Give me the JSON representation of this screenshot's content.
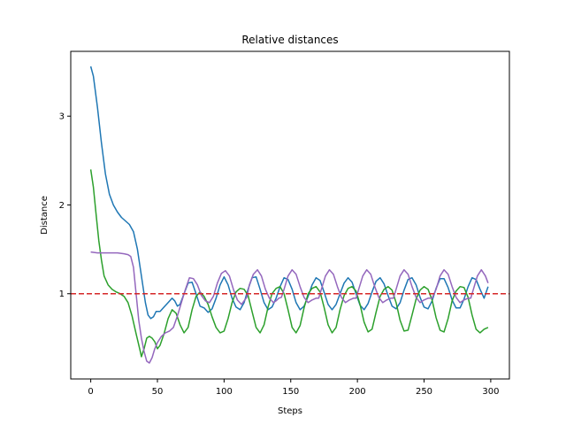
{
  "chart_data": {
    "type": "line",
    "title": "Relative distances",
    "xlabel": "Steps",
    "ylabel": "Distance",
    "xlim": [
      -15,
      314
    ],
    "ylim": [
      0.04,
      3.73
    ],
    "xticks": [
      0,
      50,
      100,
      150,
      200,
      250,
      300
    ],
    "yticks": [
      1,
      2,
      3
    ],
    "grid": false,
    "reference_line": {
      "y": 1.0,
      "style": "dashed",
      "color": "#d62728"
    },
    "series": [
      {
        "color": "#1f77b4",
        "points": [
          [
            0,
            3.56
          ],
          [
            2,
            3.45
          ],
          [
            5,
            3.1
          ],
          [
            8,
            2.7
          ],
          [
            11,
            2.35
          ],
          [
            14,
            2.12
          ],
          [
            17,
            2.0
          ],
          [
            20,
            1.92
          ],
          [
            23,
            1.86
          ],
          [
            26,
            1.82
          ],
          [
            29,
            1.78
          ],
          [
            32,
            1.7
          ],
          [
            35,
            1.5
          ],
          [
            38,
            1.2
          ],
          [
            41,
            0.9
          ],
          [
            43,
            0.76
          ],
          [
            45,
            0.72
          ],
          [
            47,
            0.74
          ],
          [
            49,
            0.8
          ],
          [
            52,
            0.8
          ],
          [
            55,
            0.85
          ],
          [
            58,
            0.9
          ],
          [
            61,
            0.95
          ],
          [
            63,
            0.92
          ],
          [
            65,
            0.86
          ],
          [
            67,
            0.88
          ],
          [
            70,
            1.0
          ],
          [
            73,
            1.12
          ],
          [
            76,
            1.13
          ],
          [
            79,
            1.0
          ],
          [
            82,
            0.86
          ],
          [
            85,
            0.84
          ],
          [
            88,
            0.79
          ],
          [
            91,
            0.83
          ],
          [
            94,
            0.95
          ],
          [
            97,
            1.1
          ],
          [
            100,
            1.19
          ],
          [
            103,
            1.1
          ],
          [
            106,
            0.95
          ],
          [
            109,
            0.85
          ],
          [
            112,
            0.82
          ],
          [
            115,
            0.9
          ],
          [
            118,
            1.05
          ],
          [
            121,
            1.18
          ],
          [
            124,
            1.19
          ],
          [
            127,
            1.05
          ],
          [
            130,
            0.9
          ],
          [
            133,
            0.82
          ],
          [
            136,
            0.85
          ],
          [
            139,
            0.95
          ],
          [
            142,
            1.08
          ],
          [
            145,
            1.18
          ],
          [
            148,
            1.16
          ],
          [
            151,
            1.05
          ],
          [
            154,
            0.9
          ],
          [
            157,
            0.82
          ],
          [
            160,
            0.86
          ],
          [
            163,
            0.97
          ],
          [
            166,
            1.1
          ],
          [
            169,
            1.18
          ],
          [
            172,
            1.15
          ],
          [
            175,
            1.02
          ],
          [
            178,
            0.88
          ],
          [
            181,
            0.82
          ],
          [
            184,
            0.88
          ],
          [
            187,
            1.0
          ],
          [
            190,
            1.12
          ],
          [
            193,
            1.18
          ],
          [
            196,
            1.13
          ],
          [
            199,
            1.0
          ],
          [
            202,
            0.87
          ],
          [
            205,
            0.82
          ],
          [
            208,
            0.89
          ],
          [
            211,
            1.02
          ],
          [
            214,
            1.14
          ],
          [
            217,
            1.18
          ],
          [
            220,
            1.11
          ],
          [
            223,
            0.98
          ],
          [
            226,
            0.86
          ],
          [
            229,
            0.83
          ],
          [
            232,
            0.9
          ],
          [
            235,
            1.04
          ],
          [
            238,
            1.16
          ],
          [
            241,
            1.18
          ],
          [
            244,
            1.1
          ],
          [
            247,
            0.96
          ],
          [
            250,
            0.85
          ],
          [
            253,
            0.83
          ],
          [
            256,
            0.92
          ],
          [
            259,
            1.06
          ],
          [
            262,
            1.17
          ],
          [
            265,
            1.17
          ],
          [
            268,
            1.07
          ],
          [
            271,
            0.93
          ],
          [
            274,
            0.84
          ],
          [
            277,
            0.84
          ],
          [
            280,
            0.94
          ],
          [
            283,
            1.08
          ],
          [
            286,
            1.18
          ],
          [
            289,
            1.16
          ],
          [
            292,
            1.05
          ],
          [
            295,
            0.95
          ],
          [
            298,
            1.08
          ]
        ]
      },
      {
        "color": "#2ca02c",
        "points": [
          [
            0,
            2.4
          ],
          [
            2,
            2.2
          ],
          [
            4,
            1.9
          ],
          [
            6,
            1.6
          ],
          [
            8,
            1.38
          ],
          [
            10,
            1.2
          ],
          [
            13,
            1.1
          ],
          [
            16,
            1.05
          ],
          [
            19,
            1.02
          ],
          [
            22,
            1.0
          ],
          [
            25,
            0.97
          ],
          [
            28,
            0.9
          ],
          [
            31,
            0.75
          ],
          [
            34,
            0.55
          ],
          [
            37,
            0.36
          ],
          [
            38,
            0.29
          ],
          [
            40,
            0.38
          ],
          [
            42,
            0.5
          ],
          [
            44,
            0.52
          ],
          [
            46,
            0.5
          ],
          [
            48,
            0.46
          ],
          [
            50,
            0.38
          ],
          [
            52,
            0.42
          ],
          [
            55,
            0.55
          ],
          [
            58,
            0.72
          ],
          [
            61,
            0.82
          ],
          [
            64,
            0.78
          ],
          [
            67,
            0.65
          ],
          [
            70,
            0.56
          ],
          [
            73,
            0.62
          ],
          [
            76,
            0.82
          ],
          [
            79,
            0.97
          ],
          [
            82,
            1.02
          ],
          [
            85,
            0.97
          ],
          [
            88,
            0.88
          ],
          [
            91,
            0.74
          ],
          [
            94,
            0.62
          ],
          [
            97,
            0.56
          ],
          [
            100,
            0.58
          ],
          [
            103,
            0.72
          ],
          [
            106,
            0.9
          ],
          [
            109,
            1.02
          ],
          [
            112,
            1.06
          ],
          [
            115,
            1.05
          ],
          [
            118,
            0.98
          ],
          [
            121,
            0.8
          ],
          [
            124,
            0.62
          ],
          [
            127,
            0.56
          ],
          [
            130,
            0.65
          ],
          [
            133,
            0.85
          ],
          [
            136,
            1.0
          ],
          [
            139,
            1.06
          ],
          [
            142,
            1.08
          ],
          [
            145,
            1.0
          ],
          [
            148,
            0.82
          ],
          [
            151,
            0.62
          ],
          [
            154,
            0.56
          ],
          [
            157,
            0.64
          ],
          [
            160,
            0.84
          ],
          [
            163,
            1.0
          ],
          [
            166,
            1.06
          ],
          [
            169,
            1.08
          ],
          [
            172,
            1.02
          ],
          [
            175,
            0.85
          ],
          [
            178,
            0.65
          ],
          [
            181,
            0.56
          ],
          [
            184,
            0.62
          ],
          [
            187,
            0.82
          ],
          [
            190,
            0.98
          ],
          [
            193,
            1.06
          ],
          [
            196,
            1.08
          ],
          [
            199,
            1.03
          ],
          [
            202,
            0.88
          ],
          [
            205,
            0.68
          ],
          [
            208,
            0.57
          ],
          [
            211,
            0.6
          ],
          [
            214,
            0.79
          ],
          [
            217,
            0.97
          ],
          [
            220,
            1.05
          ],
          [
            223,
            1.08
          ],
          [
            226,
            1.04
          ],
          [
            229,
            0.9
          ],
          [
            232,
            0.7
          ],
          [
            235,
            0.58
          ],
          [
            238,
            0.59
          ],
          [
            241,
            0.76
          ],
          [
            244,
            0.94
          ],
          [
            247,
            1.04
          ],
          [
            250,
            1.08
          ],
          [
            253,
            1.05
          ],
          [
            256,
            0.93
          ],
          [
            259,
            0.73
          ],
          [
            262,
            0.59
          ],
          [
            265,
            0.57
          ],
          [
            268,
            0.72
          ],
          [
            271,
            0.92
          ],
          [
            274,
            1.03
          ],
          [
            277,
            1.08
          ],
          [
            280,
            1.07
          ],
          [
            283,
            0.96
          ],
          [
            286,
            0.76
          ],
          [
            289,
            0.6
          ],
          [
            292,
            0.56
          ],
          [
            295,
            0.6
          ],
          [
            298,
            0.62
          ]
        ]
      },
      {
        "color": "#9467bd",
        "points": [
          [
            0,
            1.47
          ],
          [
            5,
            1.46
          ],
          [
            10,
            1.46
          ],
          [
            15,
            1.46
          ],
          [
            20,
            1.46
          ],
          [
            25,
            1.45
          ],
          [
            28,
            1.44
          ],
          [
            30,
            1.42
          ],
          [
            32,
            1.3
          ],
          [
            34,
            1.0
          ],
          [
            36,
            0.7
          ],
          [
            38,
            0.5
          ],
          [
            40,
            0.35
          ],
          [
            42,
            0.24
          ],
          [
            44,
            0.22
          ],
          [
            46,
            0.28
          ],
          [
            48,
            0.38
          ],
          [
            50,
            0.45
          ],
          [
            53,
            0.52
          ],
          [
            56,
            0.56
          ],
          [
            59,
            0.58
          ],
          [
            62,
            0.62
          ],
          [
            65,
            0.75
          ],
          [
            68,
            0.9
          ],
          [
            71,
            1.05
          ],
          [
            74,
            1.18
          ],
          [
            77,
            1.17
          ],
          [
            80,
            1.1
          ],
          [
            83,
            0.98
          ],
          [
            86,
            0.92
          ],
          [
            89,
            0.9
          ],
          [
            92,
            0.97
          ],
          [
            95,
            1.12
          ],
          [
            98,
            1.23
          ],
          [
            101,
            1.26
          ],
          [
            104,
            1.2
          ],
          [
            107,
            1.05
          ],
          [
            110,
            0.93
          ],
          [
            113,
            0.88
          ],
          [
            115,
            0.92
          ],
          [
            117,
            0.96
          ],
          [
            119,
            1.1
          ],
          [
            122,
            1.22
          ],
          [
            125,
            1.27
          ],
          [
            128,
            1.2
          ],
          [
            131,
            1.05
          ],
          [
            134,
            0.95
          ],
          [
            137,
            0.9
          ],
          [
            139,
            0.92
          ],
          [
            141,
            0.95
          ],
          [
            143,
            0.96
          ],
          [
            145,
            1.05
          ],
          [
            148,
            1.2
          ],
          [
            151,
            1.27
          ],
          [
            154,
            1.22
          ],
          [
            157,
            1.08
          ],
          [
            160,
            0.96
          ],
          [
            163,
            0.9
          ],
          [
            166,
            0.93
          ],
          [
            169,
            0.95
          ],
          [
            171,
            0.95
          ],
          [
            173,
            1.05
          ],
          [
            176,
            1.2
          ],
          [
            179,
            1.27
          ],
          [
            182,
            1.22
          ],
          [
            185,
            1.08
          ],
          [
            188,
            0.96
          ],
          [
            191,
            0.9
          ],
          [
            194,
            0.93
          ],
          [
            197,
            0.95
          ],
          [
            199,
            0.95
          ],
          [
            201,
            1.05
          ],
          [
            204,
            1.2
          ],
          [
            207,
            1.27
          ],
          [
            210,
            1.22
          ],
          [
            213,
            1.08
          ],
          [
            216,
            0.96
          ],
          [
            219,
            0.9
          ],
          [
            222,
            0.93
          ],
          [
            225,
            0.95
          ],
          [
            227,
            0.95
          ],
          [
            229,
            1.05
          ],
          [
            232,
            1.2
          ],
          [
            235,
            1.27
          ],
          [
            238,
            1.22
          ],
          [
            241,
            1.08
          ],
          [
            244,
            0.96
          ],
          [
            247,
            0.9
          ],
          [
            250,
            0.93
          ],
          [
            253,
            0.95
          ],
          [
            256,
            0.95
          ],
          [
            259,
            1.05
          ],
          [
            262,
            1.2
          ],
          [
            265,
            1.27
          ],
          [
            268,
            1.22
          ],
          [
            271,
            1.08
          ],
          [
            274,
            0.96
          ],
          [
            277,
            0.9
          ],
          [
            280,
            0.93
          ],
          [
            283,
            0.95
          ],
          [
            285,
            0.95
          ],
          [
            287,
            1.05
          ],
          [
            290,
            1.2
          ],
          [
            293,
            1.27
          ],
          [
            296,
            1.2
          ],
          [
            298,
            1.12
          ]
        ]
      }
    ]
  }
}
